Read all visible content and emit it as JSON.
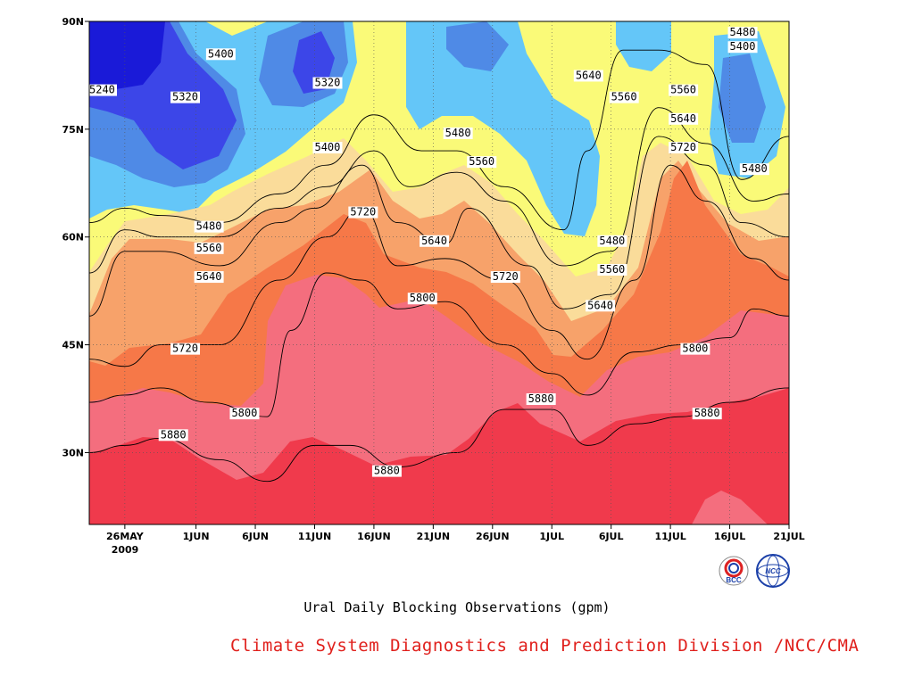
{
  "chart_data": {
    "type": "heatmap",
    "subtype": "filled-contour",
    "title": "Ural Daily Blocking Observations (gpm)",
    "xlabel": "",
    "ylabel": "",
    "x_tick_labels": [
      "26MAY",
      "1JUN",
      "6JUN",
      "11JUN",
      "16JUN",
      "21JUN",
      "26JUN",
      "1JUL",
      "6JUL",
      "11JUL",
      "16JUL",
      "21JUL"
    ],
    "x_year_label": "2009",
    "y_tick_labels": [
      "30N",
      "45N",
      "60N",
      "75N",
      "90N"
    ],
    "xlim": [
      "2009-05-23",
      "2009-07-21"
    ],
    "ylim": [
      20,
      90
    ],
    "grid": true,
    "contour_levels": [
      5240,
      5320,
      5400,
      5480,
      5560,
      5640,
      5720,
      5800,
      5880
    ],
    "fill_colors": {
      "below_5240": "#1a1ad8",
      "5240_5320": "#3c46e8",
      "5320_5400": "#4f8ae6",
      "5400_5480": "#64c6f8",
      "5480_5560": "#fafa78",
      "5560_5640": "#fadc9a",
      "5640_5720": "#f7a26a",
      "5720_5800": "#f67848",
      "5800_5880": "#f46e7e",
      "above_5880": "#f03a4c"
    },
    "contour_lines": [
      {
        "level": 5880,
        "points": [
          [
            "2009-05-23",
            30
          ],
          [
            "2009-05-26",
            31
          ],
          [
            "2009-05-29",
            32
          ],
          [
            "2009-06-03",
            29
          ],
          [
            "2009-06-07",
            26
          ],
          [
            "2009-06-11",
            31
          ],
          [
            "2009-06-14",
            31
          ],
          [
            "2009-06-18",
            28
          ],
          [
            "2009-06-23",
            30
          ],
          [
            "2009-06-27",
            36
          ],
          [
            "2009-07-01",
            36
          ],
          [
            "2009-07-04",
            31
          ],
          [
            "2009-07-08",
            34
          ],
          [
            "2009-07-12",
            35
          ],
          [
            "2009-07-16",
            37
          ],
          [
            "2009-07-21",
            39
          ]
        ]
      },
      {
        "level": 5800,
        "points": [
          [
            "2009-05-23",
            37
          ],
          [
            "2009-05-26",
            38
          ],
          [
            "2009-05-29",
            39
          ],
          [
            "2009-06-02",
            37
          ],
          [
            "2009-06-07",
            35
          ],
          [
            "2009-06-09",
            47
          ],
          [
            "2009-06-12",
            55
          ],
          [
            "2009-06-15",
            54
          ],
          [
            "2009-06-18",
            50
          ],
          [
            "2009-06-22",
            51
          ],
          [
            "2009-06-27",
            45
          ],
          [
            "2009-07-01",
            41
          ],
          [
            "2009-07-04",
            38
          ],
          [
            "2009-07-08",
            44
          ],
          [
            "2009-07-12",
            45
          ],
          [
            "2009-07-16",
            46
          ],
          [
            "2009-07-18",
            50
          ],
          [
            "2009-07-21",
            49
          ]
        ]
      },
      {
        "level": 5720,
        "points": [
          [
            "2009-05-23",
            43
          ],
          [
            "2009-05-26",
            42
          ],
          [
            "2009-05-29",
            45
          ],
          [
            "2009-06-03",
            45
          ],
          [
            "2009-06-08",
            54
          ],
          [
            "2009-06-12",
            60
          ],
          [
            "2009-06-15",
            64
          ],
          [
            "2009-06-18",
            56
          ],
          [
            "2009-06-22",
            57
          ],
          [
            "2009-06-27",
            54
          ],
          [
            "2009-07-01",
            47
          ],
          [
            "2009-07-04",
            43
          ],
          [
            "2009-07-08",
            54
          ],
          [
            "2009-07-11",
            70
          ],
          [
            "2009-07-14",
            65
          ],
          [
            "2009-07-18",
            57
          ],
          [
            "2009-07-21",
            54
          ]
        ]
      },
      {
        "level": 5640,
        "points": [
          [
            "2009-05-23",
            49
          ],
          [
            "2009-05-26",
            58
          ],
          [
            "2009-05-29",
            58
          ],
          [
            "2009-06-03",
            56
          ],
          [
            "2009-06-08",
            62
          ],
          [
            "2009-06-11",
            64
          ],
          [
            "2009-06-15",
            70
          ],
          [
            "2009-06-18",
            62
          ],
          [
            "2009-06-22",
            59
          ],
          [
            "2009-06-24",
            64
          ],
          [
            "2009-06-29",
            56
          ],
          [
            "2009-07-02",
            50
          ],
          [
            "2009-07-06",
            52
          ],
          [
            "2009-07-10",
            74
          ],
          [
            "2009-07-14",
            70
          ],
          [
            "2009-07-17",
            62
          ],
          [
            "2009-07-21",
            60
          ]
        ]
      },
      {
        "level": 5560,
        "points": [
          [
            "2009-05-23",
            55
          ],
          [
            "2009-05-26",
            61
          ],
          [
            "2009-05-29",
            60
          ],
          [
            "2009-06-03",
            60
          ],
          [
            "2009-06-08",
            64
          ],
          [
            "2009-06-12",
            67
          ],
          [
            "2009-06-16",
            72
          ],
          [
            "2009-06-19",
            67
          ],
          [
            "2009-06-23",
            69
          ],
          [
            "2009-06-27",
            65
          ],
          [
            "2009-07-02",
            56
          ],
          [
            "2009-07-06",
            58
          ],
          [
            "2009-07-10",
            78
          ],
          [
            "2009-07-14",
            73
          ],
          [
            "2009-07-18",
            65
          ],
          [
            "2009-07-21",
            66
          ]
        ]
      },
      {
        "level": 5480,
        "points": [
          [
            "2009-05-23",
            62
          ],
          [
            "2009-05-26",
            64
          ],
          [
            "2009-05-29",
            63
          ],
          [
            "2009-06-03",
            62
          ],
          [
            "2009-06-08",
            66
          ],
          [
            "2009-06-12",
            70
          ],
          [
            "2009-06-16",
            77
          ],
          [
            "2009-06-20",
            72
          ],
          [
            "2009-06-23",
            72
          ],
          [
            "2009-06-27",
            67
          ],
          [
            "2009-07-02",
            61
          ],
          [
            "2009-07-04",
            72
          ],
          [
            "2009-07-07",
            86
          ],
          [
            "2009-07-10",
            86
          ],
          [
            "2009-07-14",
            84
          ],
          [
            "2009-07-17",
            68
          ],
          [
            "2009-07-21",
            74
          ]
        ]
      }
    ],
    "contour_labels": [
      {
        "text": "5240",
        "x": "2009-05-23",
        "y": 80
      },
      {
        "text": "5320",
        "x": "2009-05-30",
        "y": 79
      },
      {
        "text": "5400",
        "x": "2009-06-02",
        "y": 85
      },
      {
        "text": "5320",
        "x": "2009-06-11",
        "y": 81
      },
      {
        "text": "5400",
        "x": "2009-06-11",
        "y": 72
      },
      {
        "text": "5480",
        "x": "2009-06-01",
        "y": 61
      },
      {
        "text": "5560",
        "x": "2009-06-01",
        "y": 58
      },
      {
        "text": "5640",
        "x": "2009-06-01",
        "y": 54
      },
      {
        "text": "5720",
        "x": "2009-05-30",
        "y": 44
      },
      {
        "text": "5800",
        "x": "2009-06-04",
        "y": 35
      },
      {
        "text": "5880",
        "x": "2009-05-29",
        "y": 32
      },
      {
        "text": "5720",
        "x": "2009-06-14",
        "y": 63
      },
      {
        "text": "5640",
        "x": "2009-06-20",
        "y": 59
      },
      {
        "text": "5800",
        "x": "2009-06-19",
        "y": 51
      },
      {
        "text": "5880",
        "x": "2009-06-16",
        "y": 27
      },
      {
        "text": "5480",
        "x": "2009-06-22",
        "y": 74
      },
      {
        "text": "5560",
        "x": "2009-06-24",
        "y": 70
      },
      {
        "text": "5720",
        "x": "2009-06-26",
        "y": 54
      },
      {
        "text": "5880",
        "x": "2009-06-29",
        "y": 37
      },
      {
        "text": "5640",
        "x": "2009-07-03",
        "y": 82
      },
      {
        "text": "5560",
        "x": "2009-07-06",
        "y": 79
      },
      {
        "text": "5480",
        "x": "2009-07-05",
        "y": 59
      },
      {
        "text": "5560",
        "x": "2009-07-05",
        "y": 55
      },
      {
        "text": "5640",
        "x": "2009-07-04",
        "y": 50
      },
      {
        "text": "5560",
        "x": "2009-07-11",
        "y": 80
      },
      {
        "text": "5640",
        "x": "2009-07-11",
        "y": 76
      },
      {
        "text": "5720",
        "x": "2009-07-11",
        "y": 72
      },
      {
        "text": "5800",
        "x": "2009-07-12",
        "y": 44
      },
      {
        "text": "5880",
        "x": "2009-07-13",
        "y": 35
      },
      {
        "text": "5480",
        "x": "2009-07-16",
        "y": 88
      },
      {
        "text": "5400",
        "x": "2009-07-16",
        "y": 86
      },
      {
        "text": "5480",
        "x": "2009-07-17",
        "y": 69
      }
    ]
  },
  "caption": "Ural Daily Blocking Observations (gpm)",
  "credit": "Climate System Diagnostics and Prediction Division /NCC/CMA",
  "credit_color": "#e0201c",
  "logos": [
    {
      "name": "bcc-logo",
      "text": "BCC"
    },
    {
      "name": "ncc-logo",
      "text": "NCC"
    }
  ]
}
